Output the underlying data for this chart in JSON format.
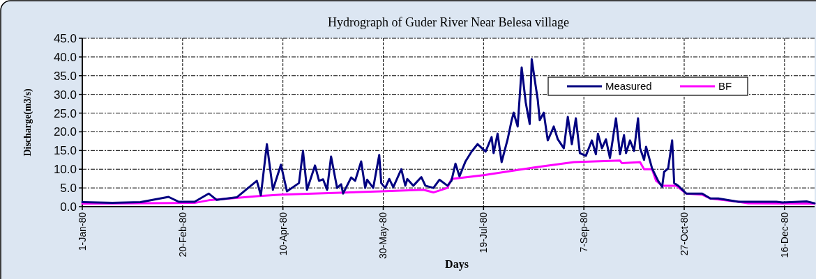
{
  "chart_data": {
    "type": "line",
    "title": "Hydrograph of Guder  River Near  Belesa  village",
    "xlabel": "Days",
    "ylabel": "Discharge(m3/s)",
    "xlim": [
      "1980-01-01",
      "1980-12-31"
    ],
    "xticks": [
      {
        "value": "1980-01-01",
        "label": "1-Jan-80"
      },
      {
        "value": "1980-02-20",
        "label": "20-Feb-80"
      },
      {
        "value": "1980-04-10",
        "label": "10-Apr-80"
      },
      {
        "value": "1980-05-30",
        "label": "30-May-80"
      },
      {
        "value": "1980-07-19",
        "label": "19-Jul-80"
      },
      {
        "value": "1980-09-07",
        "label": "7-Sep-80"
      },
      {
        "value": "1980-10-27",
        "label": "27-Oct-80"
      },
      {
        "value": "1980-12-16",
        "label": "16-Dec-80"
      }
    ],
    "ylim": [
      0,
      45
    ],
    "yticks": [
      {
        "value": 0,
        "label": "0.0"
      },
      {
        "value": 5,
        "label": "5.0"
      },
      {
        "value": 10,
        "label": "10.0"
      },
      {
        "value": 15,
        "label": "15.0"
      },
      {
        "value": 20,
        "label": "20.0"
      },
      {
        "value": 25,
        "label": "25.0"
      },
      {
        "value": 30,
        "label": "30.0"
      },
      {
        "value": 35,
        "label": "35.0"
      },
      {
        "value": 40,
        "label": "40.0"
      },
      {
        "value": 45,
        "label": "45.0"
      }
    ],
    "grid": true,
    "legend": "top right",
    "series": [
      {
        "name": "BF",
        "color": "#ff00ff",
        "x": [
          "1980-01-01",
          "1980-02-26",
          "1980-03-04",
          "1980-03-28",
          "1980-04-09",
          "1980-05-29",
          "1980-06-19",
          "1980-06-24",
          "1980-07-01",
          "1980-07-03",
          "1980-07-19",
          "1980-08-15",
          "1980-09-02",
          "1980-09-25",
          "1980-09-26",
          "1980-10-05",
          "1980-10-07",
          "1980-10-11",
          "1980-10-13",
          "1980-10-16",
          "1980-10-23",
          "1980-10-28",
          "1980-11-05",
          "1980-11-09",
          "1980-11-23",
          "1980-11-28",
          "1980-12-31"
        ],
        "values": [
          0.8,
          1.0,
          1.7,
          2.8,
          3.2,
          4.1,
          4.5,
          3.8,
          5.0,
          7.4,
          8.4,
          10.6,
          11.9,
          12.3,
          11.6,
          11.9,
          10.0,
          10.0,
          6.9,
          5.6,
          5.6,
          3.5,
          3.2,
          2.2,
          1.3,
          0.9,
          0.8
        ]
      },
      {
        "name": "Measured",
        "color": "#000080",
        "x": [
          "1980-01-01",
          "1980-01-16",
          "1980-01-30",
          "1980-02-13",
          "1980-02-18",
          "1980-02-26",
          "1980-03-04",
          "1980-03-08",
          "1980-03-18",
          "1980-03-28",
          "1980-03-30",
          "1980-04-02",
          "1980-04-05",
          "1980-04-09",
          "1980-04-12",
          "1980-04-18",
          "1980-04-20",
          "1980-04-22",
          "1980-04-26",
          "1980-04-28",
          "1980-04-30",
          "1980-05-02",
          "1980-05-04",
          "1980-05-07",
          "1980-05-09",
          "1980-05-10",
          "1980-05-14",
          "1980-05-16",
          "1980-05-19",
          "1980-05-21",
          "1980-05-22",
          "1980-05-25",
          "1980-05-28",
          "1980-05-29",
          "1980-05-31",
          "1980-06-02",
          "1980-06-04",
          "1980-06-08",
          "1980-06-10",
          "1980-06-11",
          "1980-06-14",
          "1980-06-18",
          "1980-06-20",
          "1980-06-24",
          "1980-06-27",
          "1980-07-01",
          "1980-07-03",
          "1980-07-05",
          "1980-07-07",
          "1980-07-10",
          "1980-07-13",
          "1980-07-16",
          "1980-07-20",
          "1980-07-23",
          "1980-07-24",
          "1980-07-26",
          "1980-07-28",
          "1980-07-31",
          "1980-08-02",
          "1980-08-03",
          "1980-08-05",
          "1980-08-07",
          "1980-08-09",
          "1980-08-11",
          "1980-08-12",
          "1980-08-15",
          "1980-08-16",
          "1980-08-18",
          "1980-08-20",
          "1980-08-23",
          "1980-08-25",
          "1980-08-28",
          "1980-08-30",
          "1980-09-01",
          "1980-09-03",
          "1980-09-05",
          "1980-09-08",
          "1980-09-11",
          "1980-09-13",
          "1980-09-14",
          "1980-09-16",
          "1980-09-18",
          "1980-09-20",
          "1980-09-23",
          "1980-09-25",
          "1980-09-27",
          "1980-09-28",
          "1980-09-30",
          "1980-10-02",
          "1980-10-04",
          "1980-10-05",
          "1980-10-07",
          "1980-10-08",
          "1980-10-11",
          "1980-10-14",
          "1980-10-16",
          "1980-10-17",
          "1980-10-19",
          "1980-10-21",
          "1980-10-22",
          "1980-10-24",
          "1980-10-28",
          "1980-11-05",
          "1980-11-09",
          "1980-11-13",
          "1980-11-23",
          "1980-12-12",
          "1980-12-15",
          "1980-12-27",
          "1980-12-31"
        ],
        "values": [
          1.2,
          1.0,
          1.2,
          2.6,
          1.3,
          1.3,
          3.5,
          1.8,
          2.5,
          6.9,
          3.0,
          16.7,
          4.5,
          11.2,
          4.1,
          6.3,
          14.9,
          4.5,
          11.0,
          6.9,
          7.3,
          4.5,
          13.4,
          5.0,
          6.0,
          3.5,
          7.8,
          6.9,
          12.1,
          5.0,
          7.2,
          5.0,
          13.8,
          6.3,
          5.0,
          7.4,
          5.2,
          10.0,
          5.6,
          7.4,
          5.6,
          7.9,
          5.6,
          5.0,
          7.2,
          5.6,
          6.9,
          11.5,
          8.1,
          12.1,
          14.7,
          16.7,
          14.7,
          18.6,
          14.3,
          19.5,
          11.9,
          18.0,
          23.1,
          25.1,
          21.4,
          37.2,
          27.9,
          22.1,
          39.4,
          28.6,
          23.1,
          25.1,
          17.7,
          21.4,
          18.0,
          15.6,
          24.0,
          16.7,
          23.6,
          14.3,
          13.6,
          17.7,
          14.0,
          19.5,
          15.6,
          18.0,
          13.0,
          23.6,
          14.0,
          19.1,
          14.3,
          17.7,
          14.9,
          23.6,
          15.6,
          12.5,
          16.0,
          10.2,
          6.9,
          5.3,
          9.3,
          10.2,
          17.7,
          6.3,
          5.6,
          3.5,
          3.5,
          2.2,
          2.2,
          1.3,
          1.3,
          1.1,
          1.4,
          0.9
        ]
      }
    ]
  }
}
